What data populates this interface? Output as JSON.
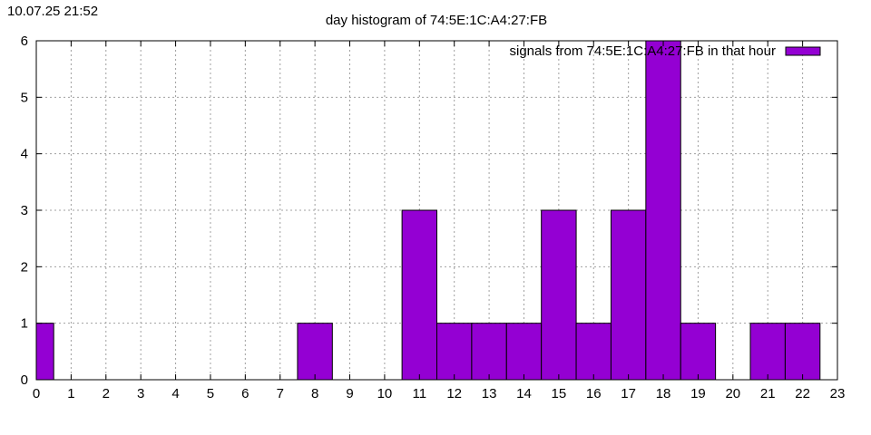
{
  "timestamp": "10.07.25 21:52",
  "chart_data": {
    "type": "bar",
    "title": "day histogram of 74:5E:1C:A4:27:FB",
    "xlabel": "",
    "ylabel": "",
    "xlim": [
      0,
      23
    ],
    "ylim": [
      0,
      6
    ],
    "x_ticks": [
      0,
      1,
      2,
      3,
      4,
      5,
      6,
      7,
      8,
      9,
      10,
      11,
      12,
      13,
      14,
      15,
      16,
      17,
      18,
      19,
      20,
      21,
      22,
      23
    ],
    "y_ticks": [
      0,
      1,
      2,
      3,
      4,
      5,
      6
    ],
    "grid": true,
    "legend_position": "top-right",
    "series": [
      {
        "name": "signals from 74:5E:1C:A4:27:FB in that hour",
        "color": "#9400d3",
        "x": [
          0,
          1,
          2,
          3,
          4,
          5,
          6,
          7,
          8,
          9,
          10,
          11,
          12,
          13,
          14,
          15,
          16,
          17,
          18,
          19,
          20,
          21,
          22
        ],
        "values": [
          1,
          0,
          0,
          0,
          0,
          0,
          0,
          0,
          1,
          0,
          0,
          3,
          1,
          1,
          1,
          3,
          1,
          3,
          6,
          1,
          0,
          1,
          1
        ]
      }
    ]
  }
}
